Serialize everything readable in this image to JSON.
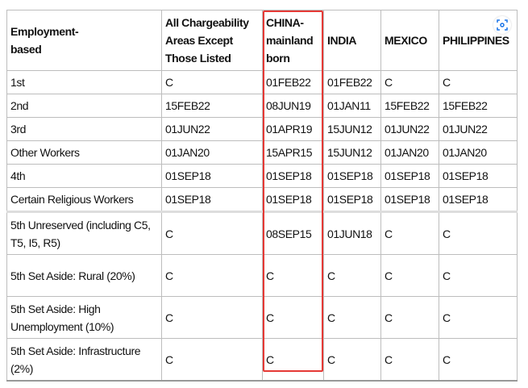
{
  "headers": [
    "Employment-\nbased",
    "All Chargeability Areas Except Those Listed",
    "CHINA-mainland born",
    "INDIA",
    "MEXICO",
    "PHILIPPINES"
  ],
  "rows": [
    [
      "1st",
      "C",
      "01FEB22",
      "01FEB22",
      "C",
      "C"
    ],
    [
      "2nd",
      "15FEB22",
      "08JUN19",
      "01JAN11",
      "15FEB22",
      "15FEB22"
    ],
    [
      "3rd",
      "01JUN22",
      "01APR19",
      "15JUN12",
      "01JUN22",
      "01JUN22"
    ],
    [
      "Other Workers",
      "01JAN20",
      "15APR15",
      "15JUN12",
      "01JAN20",
      "01JAN20"
    ],
    [
      "4th",
      "01SEP18",
      "01SEP18",
      "01SEP18",
      "01SEP18",
      "01SEP18"
    ],
    [
      "Certain Religious Workers",
      "01SEP18",
      "01SEP18",
      "01SEP18",
      "01SEP18",
      "01SEP18"
    ],
    [
      "5th Unreserved (including C5, T5, I5, R5)",
      "C",
      "08SEP15",
      "01JUN18",
      "C",
      "C"
    ],
    [
      "5th Set Aside: Rural (20%)",
      "C",
      "C",
      "C",
      "C",
      "C"
    ],
    [
      "5th Set Aside: High Unemployment (10%)",
      "C",
      "C",
      "C",
      "C",
      "C"
    ],
    [
      "5th Set Aside: Infrastructure (2%)",
      "C",
      "C",
      "C",
      "C",
      "C"
    ]
  ],
  "highlight_color": "#e53935",
  "icon": "visual-search-lens-icon"
}
